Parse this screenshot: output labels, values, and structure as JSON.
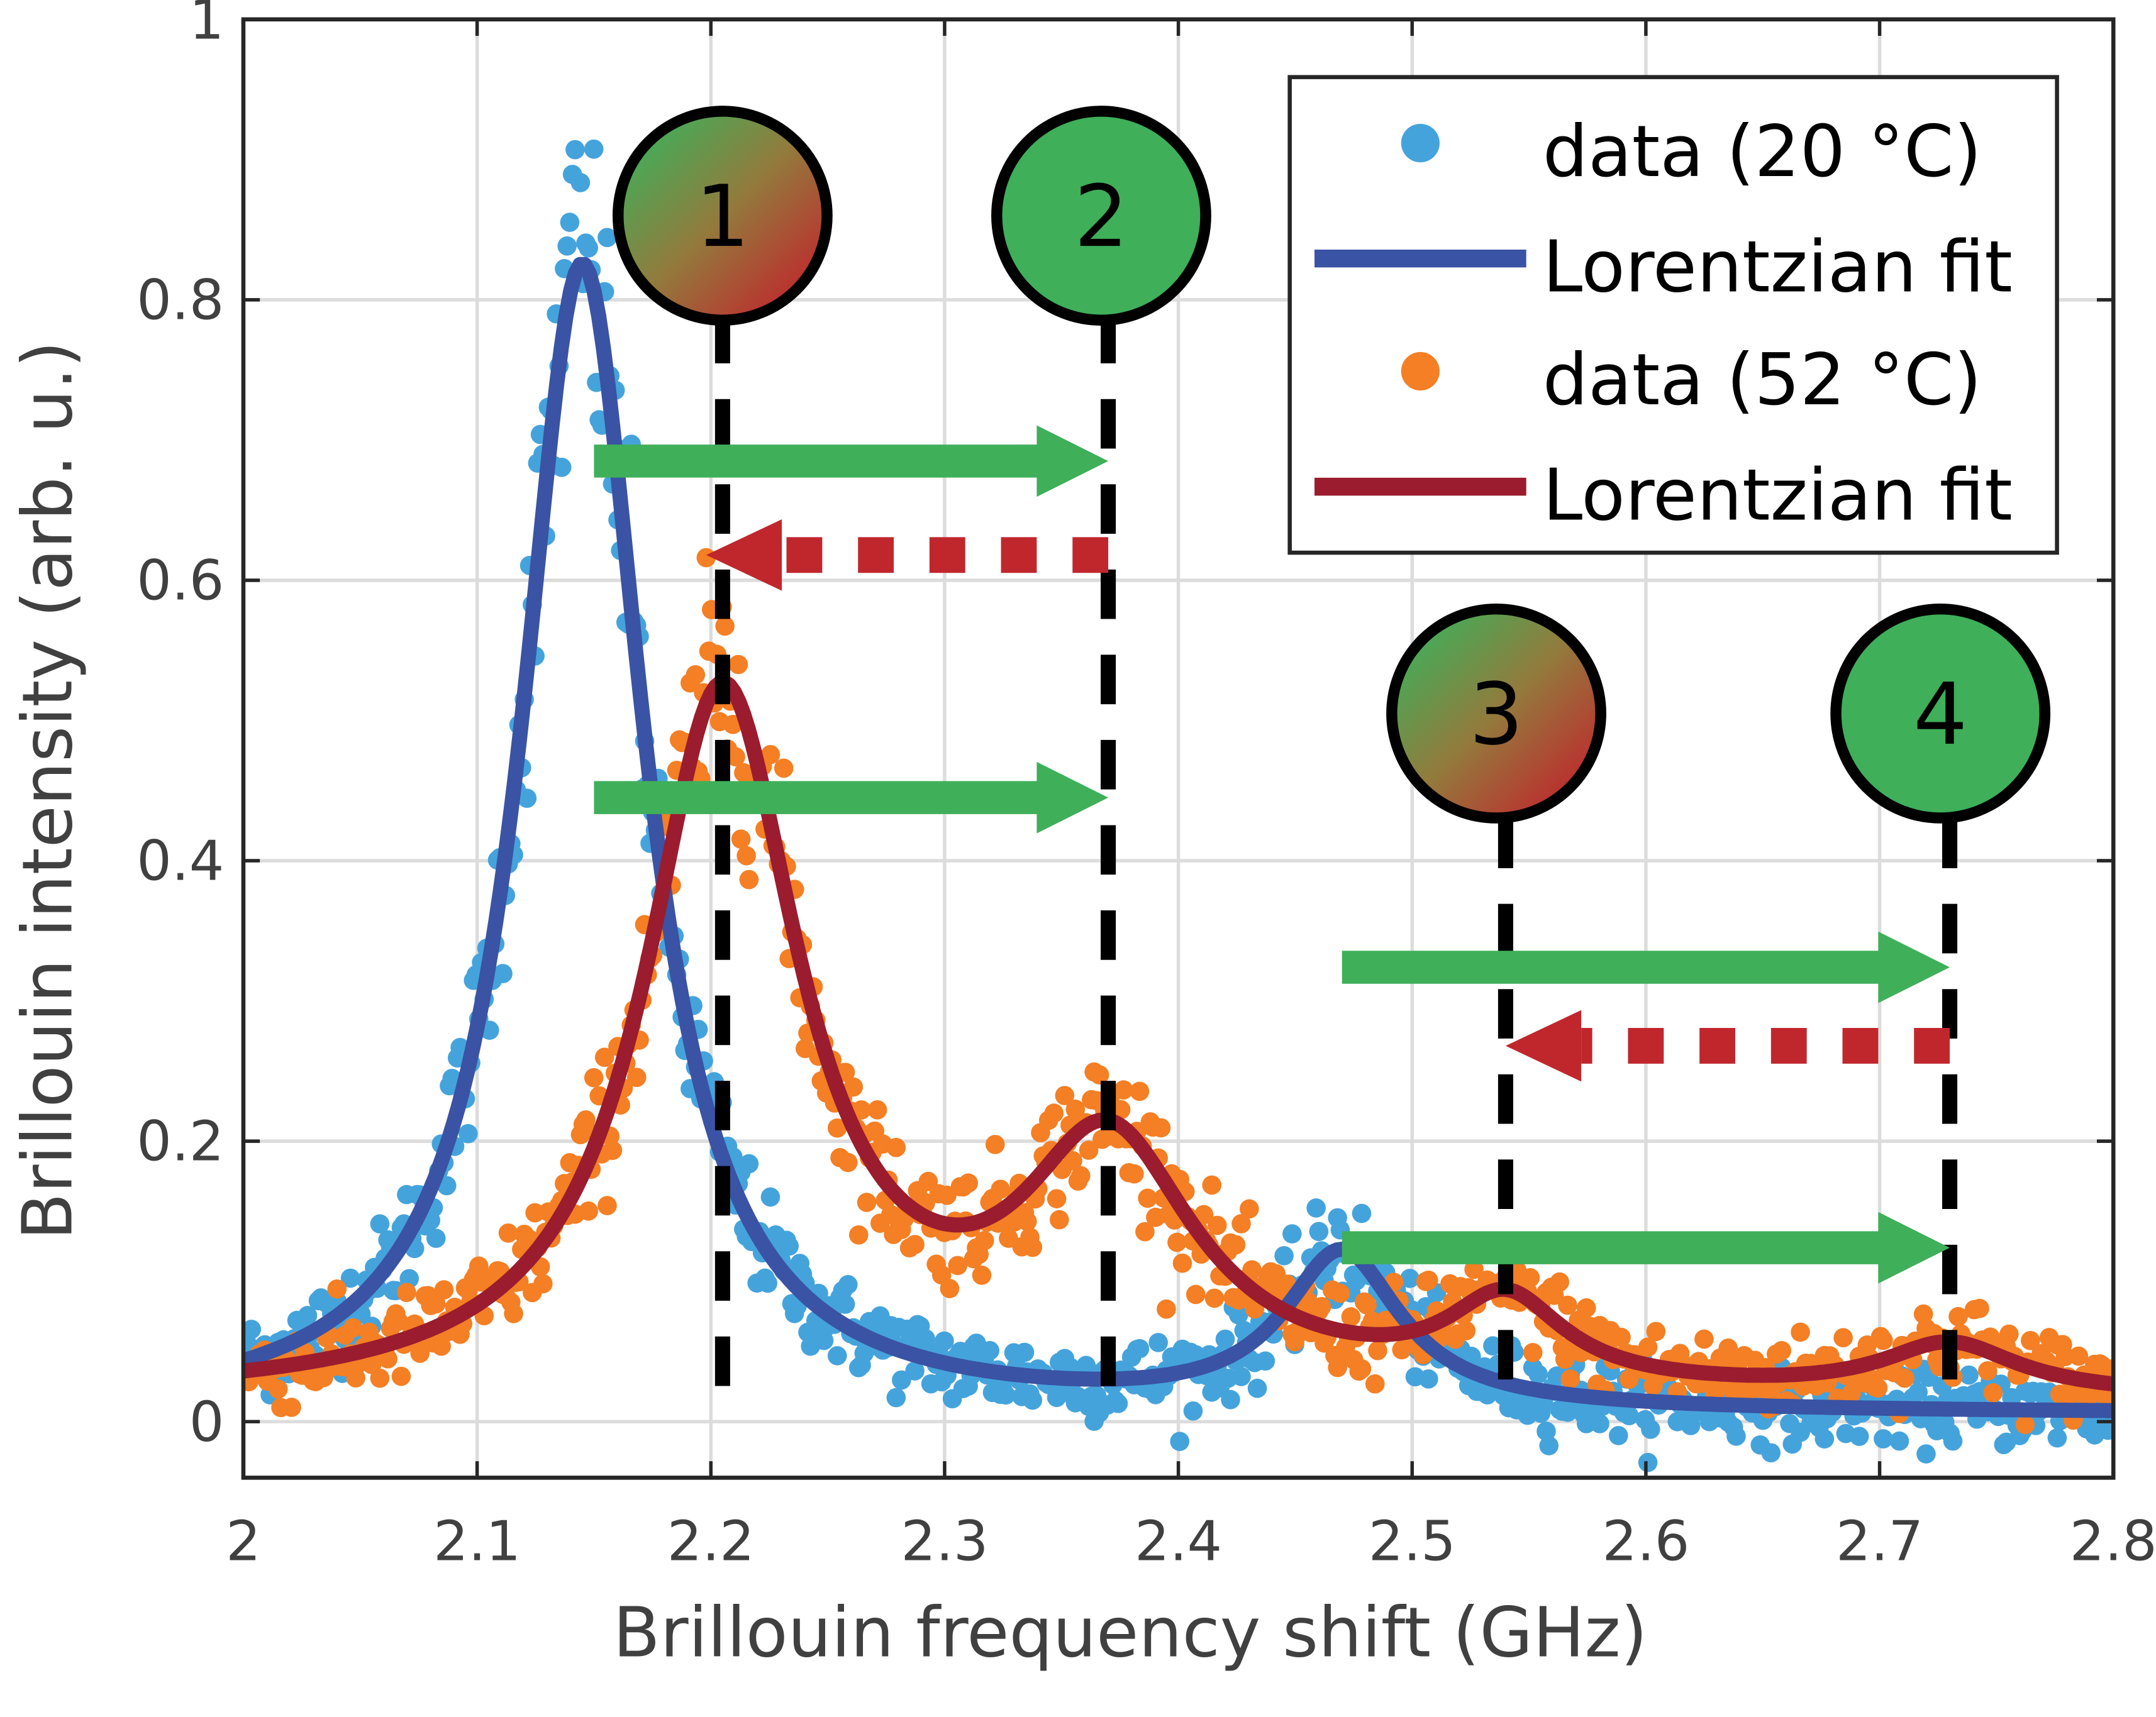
{
  "chart_data": {
    "type": "scatter",
    "xlabel": "Brillouin frequency shift (GHz)",
    "ylabel": "Brillouin intensity (arb. u.)",
    "xlim": [
      2,
      2.8
    ],
    "ylim": [
      -0.04,
      1
    ],
    "xticks": [
      "2",
      "2.1",
      "2.2",
      "2.3",
      "2.4",
      "2.5",
      "2.6",
      "2.7",
      "2.8"
    ],
    "yticks": [
      "0",
      "0.2",
      "0.4",
      "0.6",
      "0.8",
      "1"
    ],
    "grid": true,
    "legend_position": "top-right",
    "series": [
      {
        "name": "data (20 °C)",
        "kind": "scatter",
        "color": "#45a3dc",
        "fit": "blue-fit"
      },
      {
        "name": "Lorentzian fit",
        "id": "blue-fit",
        "kind": "line",
        "color": "#3a53a4",
        "baseline": 0.005,
        "peaks": [
          {
            "center": 2.145,
            "amplitude": 0.82,
            "hwhm": 0.032
          },
          {
            "center": 2.47,
            "amplitude": 0.11,
            "hwhm": 0.03
          }
        ]
      },
      {
        "name": "data (52 °C)",
        "kind": "scatter",
        "color": "#f47f24",
        "fit": "red-fit"
      },
      {
        "name": "Lorentzian fit",
        "id": "red-fit",
        "kind": "line",
        "color": "#9b1c2e",
        "baseline": 0.015,
        "peaks": [
          {
            "center": 2.205,
            "amplitude": 0.5,
            "hwhm": 0.04
          },
          {
            "center": 2.37,
            "amplitude": 0.17,
            "hwhm": 0.045
          },
          {
            "center": 2.54,
            "amplitude": 0.06,
            "hwhm": 0.03
          },
          {
            "center": 2.73,
            "amplitude": 0.035,
            "hwhm": 0.035
          }
        ]
      }
    ],
    "annotations": {
      "markers": [
        {
          "label": "1",
          "x": 2.205,
          "y": 0.86,
          "fill": "gradient"
        },
        {
          "label": "2",
          "x": 2.367,
          "y": 0.86,
          "fill": "green"
        },
        {
          "label": "3",
          "x": 2.536,
          "y": 0.505,
          "fill": "gradient"
        },
        {
          "label": "4",
          "x": 2.726,
          "y": 0.505,
          "fill": "green"
        }
      ],
      "vlines": [
        2.205,
        2.37,
        2.54,
        2.73
      ],
      "green_arrows": [
        {
          "from": 2.15,
          "to": 2.37,
          "y": 0.685
        },
        {
          "from": 2.15,
          "to": 2.37,
          "y": 0.445
        },
        {
          "from": 2.47,
          "to": 2.73,
          "y": 0.324
        },
        {
          "from": 2.47,
          "to": 2.73,
          "y": 0.124
        }
      ],
      "red_dashed_arrows": [
        {
          "from": 2.37,
          "to": 2.198,
          "y": 0.618
        },
        {
          "from": 2.73,
          "to": 2.54,
          "y": 0.268
        }
      ],
      "green": "#3faf5a",
      "red": "#c0272d"
    }
  }
}
